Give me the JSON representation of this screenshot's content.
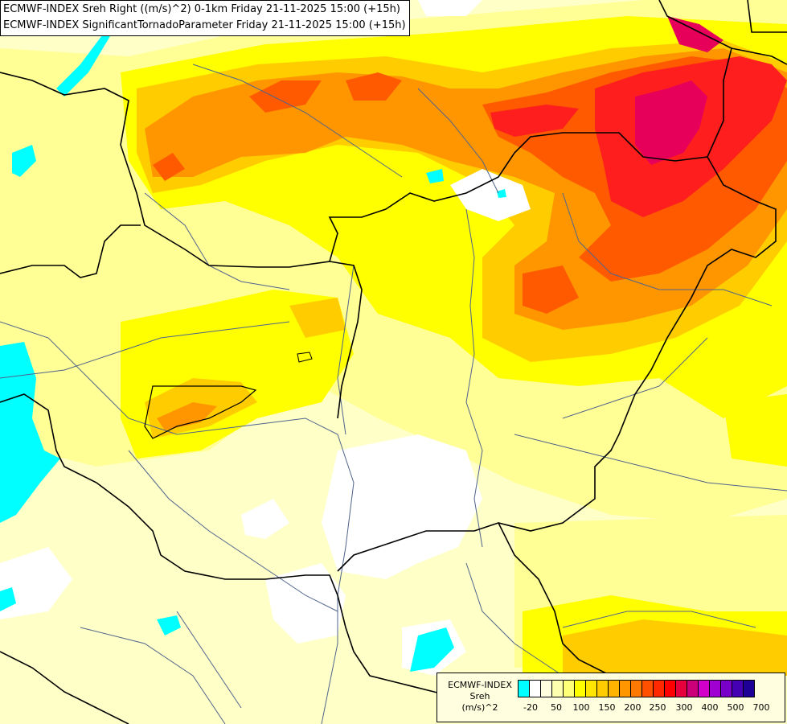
{
  "header": {
    "line1": "ECMWF-INDEX Sreh Right ((m/s)^2) 0-1km Friday 21-11-2025 15:00 (+15h)",
    "line2": "ECMWF-INDEX SignificantTornadoParameter Friday 21-11-2025 15:00 (+15h)"
  },
  "legend": {
    "title_line1": "ECMWF-INDEX",
    "title_line2": "Sreh",
    "title_line3": "(m/s)^2",
    "colors": [
      "#00ffff",
      "#ffffff",
      "#ffffe0",
      "#ffffb0",
      "#ffff78",
      "#ffff00",
      "#ffe600",
      "#ffcc00",
      "#ffb400",
      "#ff9600",
      "#ff7800",
      "#ff5000",
      "#ff2800",
      "#ff0000",
      "#e6003c",
      "#cc0078",
      "#d200c8",
      "#a000d2",
      "#7800c8",
      "#4600b4",
      "#1e0096"
    ],
    "labels": [
      "-20",
      "50",
      "100",
      "150",
      "200",
      "250",
      "300",
      "400",
      "500",
      "700"
    ]
  },
  "map": {
    "colors": {
      "pale": "#ffffc8",
      "light_yellow": "#ffff96",
      "yellow": "#ffff00",
      "gold": "#ffcc00",
      "orange": "#ff9600",
      "dark_orange": "#ff5a00",
      "red": "#ff1e1e",
      "crimson": "#e6005a",
      "white": "#ffffff",
      "cyan": "#00ffff",
      "border": "#000000",
      "river": "#50648c"
    }
  }
}
